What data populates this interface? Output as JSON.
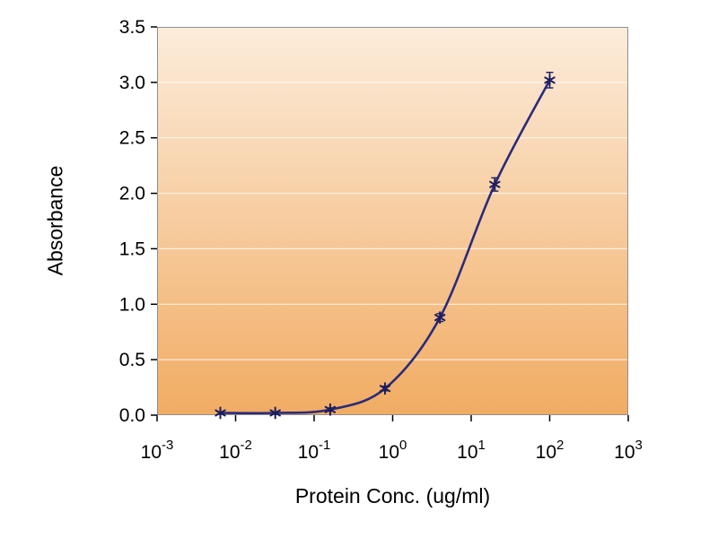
{
  "chart_data": {
    "type": "line",
    "title": "",
    "xlabel": "Protein Conc. (ug/ml)",
    "ylabel": "Absorbance",
    "x_scale": "log",
    "x_range": [
      0.001,
      1000
    ],
    "y_range": [
      0,
      3.5
    ],
    "x_tick_base": "10",
    "x_tick_exponents": [
      "-3",
      "-2",
      "-1",
      "0",
      "1",
      "2",
      "3"
    ],
    "y_ticks": [
      0,
      0.5,
      1.0,
      1.5,
      2.0,
      2.5,
      3.0,
      3.5
    ],
    "y_tick_labels": [
      "0.0",
      "0.5",
      "1.0",
      "1.5",
      "2.0",
      "2.5",
      "3.0",
      "3.5"
    ],
    "grid": "horizontal",
    "legend": "none",
    "series": [
      {
        "name": "Absorbance",
        "x": [
          0.0064,
          0.032,
          0.16,
          0.8,
          4,
          20,
          100
        ],
        "y": [
          0.02,
          0.02,
          0.05,
          0.24,
          0.88,
          2.08,
          3.02
        ],
        "yerr": [
          0.01,
          0.01,
          0.015,
          0.02,
          0.035,
          0.06,
          0.07
        ]
      }
    ],
    "colors": {
      "line": "#2b2b7a",
      "marker": "#1d1d5e",
      "plot_bg_top": "#fcecdb",
      "plot_bg_bottom": "#f1ac63",
      "grid_line": "#ffffff",
      "frame": "#8f8f8f",
      "text": "#000000",
      "background": "#ffffff"
    }
  }
}
